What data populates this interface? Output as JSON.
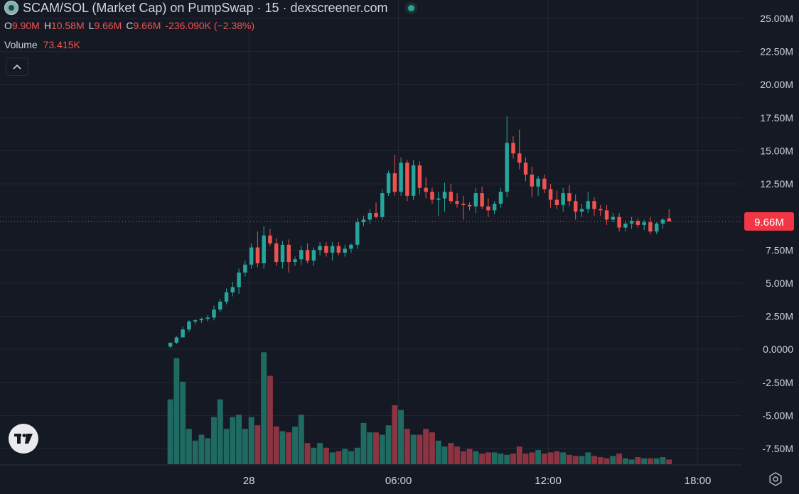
{
  "header": {
    "title": "SCAM/SOL (Market Cap) on PumpSwap · 15 · dexscreener.com",
    "ohlc": [
      {
        "key": "O",
        "value": "9.90M"
      },
      {
        "key": "H",
        "value": "10.58M"
      },
      {
        "key": "L",
        "value": "9.66M"
      },
      {
        "key": "C",
        "value": "9.66M"
      },
      {
        "key": "",
        "value": "-236.090K (−2.38%)"
      }
    ],
    "volume_label": "Volume",
    "volume_value": "73.415K",
    "collapse_icon": "chevron-up-icon",
    "logo_icon": "tradingview-logo-icon",
    "settings_icon": "gear-icon"
  },
  "colors": {
    "background": "#151924",
    "up": "#26a69a",
    "down": "#ef5350",
    "up_volume": "#1f6b61",
    "down_volume": "#8c3441",
    "grid": "#232733",
    "text": "#d1d4dc",
    "price_label_bg": "#f23645"
  },
  "chart_data": {
    "type": "candlestick",
    "title": "SCAM/SOL (Market Cap) on PumpSwap · 15 · dexscreener.com",
    "y_axis": {
      "ticks": [
        "25.00M",
        "22.50M",
        "20.00M",
        "17.50M",
        "15.00M",
        "12.50M",
        "10.00M",
        "7.50M",
        "5.00M",
        "2.50M",
        "0.0000",
        "-2.50M",
        "-5.00M",
        "-7.50M"
      ],
      "range_millions": [
        -8.9,
        26.3
      ]
    },
    "x_axis": {
      "ticks": [
        "28",
        "06:00",
        "12:00",
        "18:00"
      ],
      "tick_hours": [
        24,
        30,
        36,
        42
      ],
      "range_hours": [
        14.02,
        46.06
      ],
      "interval_minutes": 15
    },
    "current_price_label": "9.66M",
    "current_price_millions": 9.66,
    "grid": true,
    "candles_millions_ohlc": [
      [
        0.2,
        0.5,
        0.1,
        0.5
      ],
      [
        0.5,
        1.0,
        0.4,
        0.9
      ],
      [
        0.9,
        1.7,
        0.9,
        1.5
      ],
      [
        1.5,
        2.2,
        1.3,
        2.1
      ],
      [
        2.1,
        2.3,
        1.9,
        2.2
      ],
      [
        2.2,
        2.4,
        2.0,
        2.3
      ],
      [
        2.3,
        2.6,
        2.1,
        2.4
      ],
      [
        2.4,
        3.3,
        2.2,
        3.0
      ],
      [
        3.0,
        3.8,
        2.8,
        3.6
      ],
      [
        3.6,
        4.6,
        3.4,
        4.3
      ],
      [
        4.3,
        5.1,
        4.0,
        4.7
      ],
      [
        4.7,
        6.1,
        4.2,
        5.8
      ],
      [
        5.8,
        6.7,
        5.5,
        6.4
      ],
      [
        6.4,
        8.0,
        6.1,
        7.7
      ],
      [
        7.7,
        8.9,
        6.2,
        6.5
      ],
      [
        6.5,
        9.3,
        6.1,
        8.6
      ],
      [
        8.6,
        9.1,
        7.8,
        8.0
      ],
      [
        8.0,
        8.4,
        6.3,
        6.6
      ],
      [
        6.6,
        8.2,
        6.1,
        7.9
      ],
      [
        7.9,
        8.3,
        5.8,
        6.6
      ],
      [
        6.6,
        7.0,
        6.3,
        6.8
      ],
      [
        6.8,
        7.8,
        6.4,
        7.5
      ],
      [
        7.5,
        8.0,
        6.5,
        6.7
      ],
      [
        6.7,
        7.7,
        6.3,
        7.5
      ],
      [
        7.5,
        8.1,
        7.1,
        7.8
      ],
      [
        7.8,
        8.1,
        7.0,
        7.3
      ],
      [
        7.3,
        8.1,
        6.7,
        7.8
      ],
      [
        7.8,
        8.1,
        7.1,
        7.3
      ],
      [
        7.3,
        7.9,
        7.0,
        7.6
      ],
      [
        7.6,
        8.0,
        7.3,
        7.9
      ],
      [
        7.9,
        9.9,
        7.6,
        9.6
      ],
      [
        9.6,
        10.1,
        9.3,
        9.8
      ],
      [
        9.8,
        10.6,
        9.5,
        10.3
      ],
      [
        10.3,
        11.1,
        9.9,
        10.0
      ],
      [
        10.0,
        12.1,
        9.8,
        11.8
      ],
      [
        11.8,
        13.5,
        11.6,
        13.3
      ],
      [
        13.3,
        14.7,
        11.6,
        11.9
      ],
      [
        11.9,
        14.5,
        11.6,
        14.1
      ],
      [
        14.1,
        14.3,
        11.2,
        11.6
      ],
      [
        11.6,
        14.3,
        11.3,
        13.9
      ],
      [
        13.9,
        14.2,
        11.7,
        12.2
      ],
      [
        12.2,
        13.0,
        11.4,
        11.9
      ],
      [
        11.9,
        12.2,
        11.0,
        11.3
      ],
      [
        11.3,
        11.9,
        10.1,
        11.4
      ],
      [
        11.4,
        12.6,
        10.4,
        11.9
      ],
      [
        11.9,
        12.5,
        11.0,
        11.2
      ],
      [
        11.2,
        11.8,
        10.7,
        11.0
      ],
      [
        11.0,
        11.6,
        9.8,
        10.9
      ],
      [
        10.9,
        11.1,
        10.5,
        10.8
      ],
      [
        10.8,
        12.2,
        10.3,
        11.8
      ],
      [
        11.8,
        12.3,
        10.6,
        10.8
      ],
      [
        10.8,
        11.4,
        10.0,
        10.5
      ],
      [
        10.5,
        11.2,
        10.2,
        11.0
      ],
      [
        11.0,
        12.2,
        10.7,
        11.9
      ],
      [
        11.9,
        17.6,
        11.5,
        15.6
      ],
      [
        15.6,
        16.1,
        14.4,
        14.8
      ],
      [
        14.8,
        16.6,
        13.6,
        14.1
      ],
      [
        14.1,
        14.5,
        12.7,
        13.2
      ],
      [
        13.2,
        13.8,
        11.5,
        12.3
      ],
      [
        12.3,
        13.1,
        11.6,
        12.9
      ],
      [
        12.9,
        13.2,
        11.8,
        12.1
      ],
      [
        12.1,
        12.5,
        10.7,
        11.3
      ],
      [
        11.3,
        12.0,
        10.6,
        10.9
      ],
      [
        10.9,
        12.2,
        10.4,
        11.8
      ],
      [
        11.8,
        12.4,
        10.8,
        11.2
      ],
      [
        11.2,
        11.7,
        9.8,
        10.4
      ],
      [
        10.4,
        11.0,
        10.0,
        10.6
      ],
      [
        10.6,
        11.9,
        10.3,
        11.2
      ],
      [
        11.2,
        11.5,
        10.1,
        10.6
      ],
      [
        10.6,
        10.9,
        10.1,
        10.5
      ],
      [
        10.5,
        10.9,
        9.4,
        9.8
      ],
      [
        9.8,
        10.3,
        9.6,
        10.0
      ],
      [
        10.0,
        10.3,
        8.9,
        9.2
      ],
      [
        9.2,
        9.7,
        8.9,
        9.5
      ],
      [
        9.5,
        10.0,
        9.1,
        9.7
      ],
      [
        9.7,
        9.9,
        9.2,
        9.4
      ],
      [
        9.4,
        9.8,
        9.0,
        9.6
      ],
      [
        9.6,
        10.0,
        8.7,
        8.9
      ],
      [
        8.9,
        9.6,
        8.7,
        9.5
      ],
      [
        9.5,
        9.9,
        9.1,
        9.8
      ],
      [
        9.9,
        10.58,
        9.66,
        9.66
      ]
    ],
    "volume_relative": [
      0.55,
      0.9,
      0.7,
      0.3,
      0.2,
      0.25,
      0.22,
      0.4,
      0.55,
      0.3,
      0.4,
      0.42,
      0.3,
      0.4,
      0.33,
      0.95,
      0.75,
      0.32,
      0.28,
      0.27,
      0.32,
      0.42,
      0.18,
      0.14,
      0.18,
      0.14,
      0.1,
      0.11,
      0.13,
      0.11,
      0.14,
      0.35,
      0.27,
      0.27,
      0.25,
      0.33,
      0.5,
      0.46,
      0.3,
      0.25,
      0.25,
      0.3,
      0.27,
      0.2,
      0.15,
      0.18,
      0.15,
      0.11,
      0.13,
      0.11,
      0.09,
      0.1,
      0.1,
      0.09,
      0.08,
      0.09,
      0.15,
      0.09,
      0.1,
      0.12,
      0.09,
      0.1,
      0.11,
      0.1,
      0.08,
      0.07,
      0.07,
      0.1,
      0.07,
      0.06,
      0.05,
      0.07,
      0.09,
      0.05,
      0.04,
      0.06,
      0.05,
      0.05,
      0.05,
      0.06,
      0.04
    ]
  }
}
